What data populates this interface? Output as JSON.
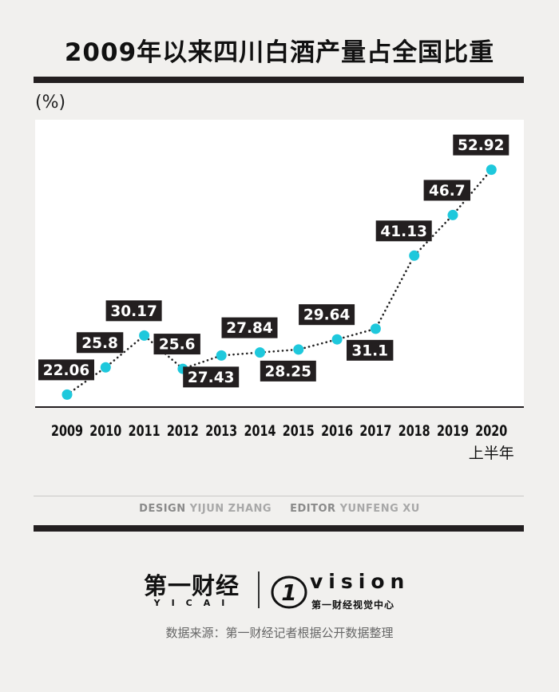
{
  "title": "2009年以来四川白酒产量占全国比重",
  "unit_label": "(%)",
  "last_sub_label": "上半年",
  "credits": {
    "design_key": "DESIGN",
    "design_value": "YIJUN ZHANG",
    "editor_key": "EDITOR",
    "editor_value": "YUNFENG XU"
  },
  "logo": {
    "left_cn": "第一财经",
    "left_en": "YICAI",
    "right_mark": "1",
    "right_en": "vision",
    "right_cn": "第一财经视觉中心"
  },
  "source": "数据来源：第一财经记者根据公开数据整理",
  "colors": {
    "accent": "#1ec8dc",
    "dark": "#231f20",
    "background": "#f1f0ee"
  },
  "chart_data": {
    "type": "line",
    "categories": [
      "2009",
      "2010",
      "2011",
      "2012",
      "2013",
      "2014",
      "2015",
      "2016",
      "2017",
      "2018",
      "2019",
      "2020"
    ],
    "values": [
      22.06,
      25.8,
      30.17,
      25.6,
      27.43,
      27.84,
      28.25,
      29.64,
      31.1,
      41.13,
      46.7,
      52.92
    ],
    "labels": [
      "22.06",
      "25.8",
      "30.17",
      "25.6",
      "27.43",
      "27.84",
      "28.25",
      "29.64",
      "31.1",
      "41.13",
      "46.7",
      "52.92"
    ],
    "ylabel": "(%)",
    "ylim": [
      20,
      55
    ],
    "line_style": "dotted",
    "grid": false,
    "legend": "none"
  }
}
